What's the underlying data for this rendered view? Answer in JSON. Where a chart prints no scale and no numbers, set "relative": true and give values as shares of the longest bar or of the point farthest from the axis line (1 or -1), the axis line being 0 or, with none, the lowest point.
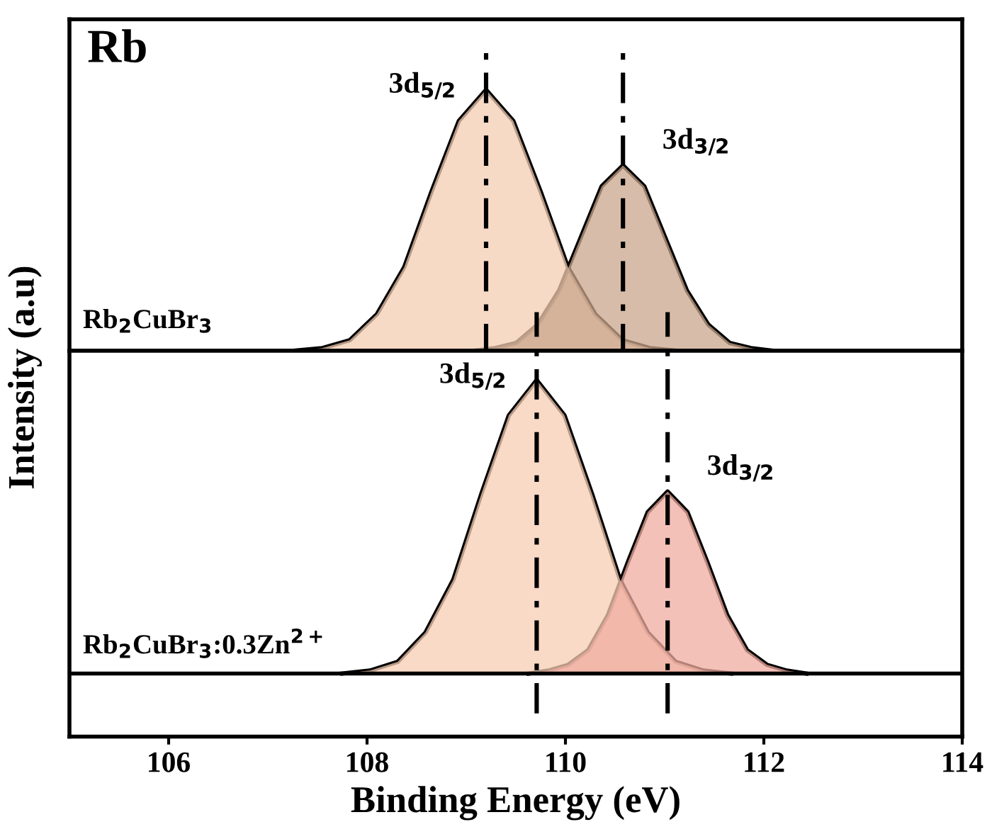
{
  "chart_data": [
    {
      "type": "area",
      "title": "Rb",
      "ylabel": "Intensity (a.u)",
      "relative": true,
      "xlim": [
        105,
        114
      ],
      "tick_labels": false,
      "line_style": "solid",
      "series": [
        {
          "color": "#f3cdb3",
          "x": [
            107.275,
            107.55,
            107.825,
            108.1,
            108.375,
            108.65,
            108.925,
            109.2,
            109.475,
            109.75,
            110.025,
            110.3,
            110.575,
            110.85,
            111.125
          ],
          "values": [
            0.0,
            0.01,
            0.04,
            0.14,
            0.32,
            0.61,
            0.88,
            1,
            0.88,
            0.61,
            0.32,
            0.14,
            0.04,
            0.01,
            0.0
          ]
        },
        {
          "color": "#c9a58c",
          "x": [
            109.075,
            109.29,
            109.505,
            109.72,
            109.935,
            110.15,
            110.365,
            110.58,
            110.795,
            111.01,
            111.225,
            111.44,
            111.655,
            111.87,
            112.085
          ],
          "values": [
            0.0,
            0.01,
            0.03,
            0.1,
            0.23,
            0.43,
            0.63,
            0.71,
            0.63,
            0.43,
            0.23,
            0.1,
            0.03,
            0.01,
            0.0
          ]
        }
      ],
      "ref_lines": [
        {
          "axis": "x",
          "value": 109.2,
          "line_style": "dashed"
        },
        {
          "axis": "x",
          "value": 110.58,
          "line_style": "dashed"
        }
      ],
      "annotations": [
        {
          "text": "3d$_{5/2}$",
          "x": 109.2,
          "y": 1
        },
        {
          "text": "3d$_{3/2}$",
          "x": 110.58,
          "y": 0.71
        },
        "Rb$_{2}$CuBr$_{3}$"
      ]
    },
    {
      "type": "area",
      "xlabel": "Binding Energy (eV)",
      "relative": true,
      "xlim": [
        105,
        114
      ],
      "xticks": [
        106,
        108,
        110,
        112,
        114
      ],
      "tick_labels": "x",
      "line_style": "solid",
      "series": [
        {
          "color": "#f5cdb4",
          "x": [
            107.75,
            108.03,
            108.31,
            108.59,
            108.87,
            109.15,
            109.43,
            109.71,
            109.99,
            110.27,
            110.55,
            110.83,
            111.11,
            111.39,
            111.67
          ],
          "values": [
            0.0,
            0.01,
            0.04,
            0.14,
            0.32,
            0.61,
            0.88,
            1,
            0.88,
            0.61,
            0.32,
            0.14,
            0.04,
            0.01,
            0.0
          ]
        },
        {
          "color": "#f0aca0",
          "x": [
            109.63,
            109.83,
            110.03,
            110.23,
            110.43,
            110.63,
            110.83,
            111.03,
            111.23,
            111.43,
            111.63,
            111.83,
            112.03,
            112.23,
            112.43
          ],
          "values": [
            0.0,
            0.01,
            0.03,
            0.08,
            0.2,
            0.38,
            0.55,
            0.62,
            0.55,
            0.38,
            0.2,
            0.08,
            0.03,
            0.01,
            0.0
          ]
        }
      ],
      "ref_lines": [
        {
          "axis": "x",
          "value": 109.71,
          "line_style": "dashed"
        },
        {
          "axis": "x",
          "value": 111.03,
          "line_style": "dashed"
        }
      ],
      "annotations": [
        {
          "text": "3d$_{5/2}$",
          "x": 109.71,
          "y": 1
        },
        {
          "text": "3d$_{3/2}$",
          "x": 111.03,
          "y": 0.62
        },
        "Rb$_{2}$CuBr$_{3}$:0.3Zn$^{2+}$"
      ]
    }
  ]
}
